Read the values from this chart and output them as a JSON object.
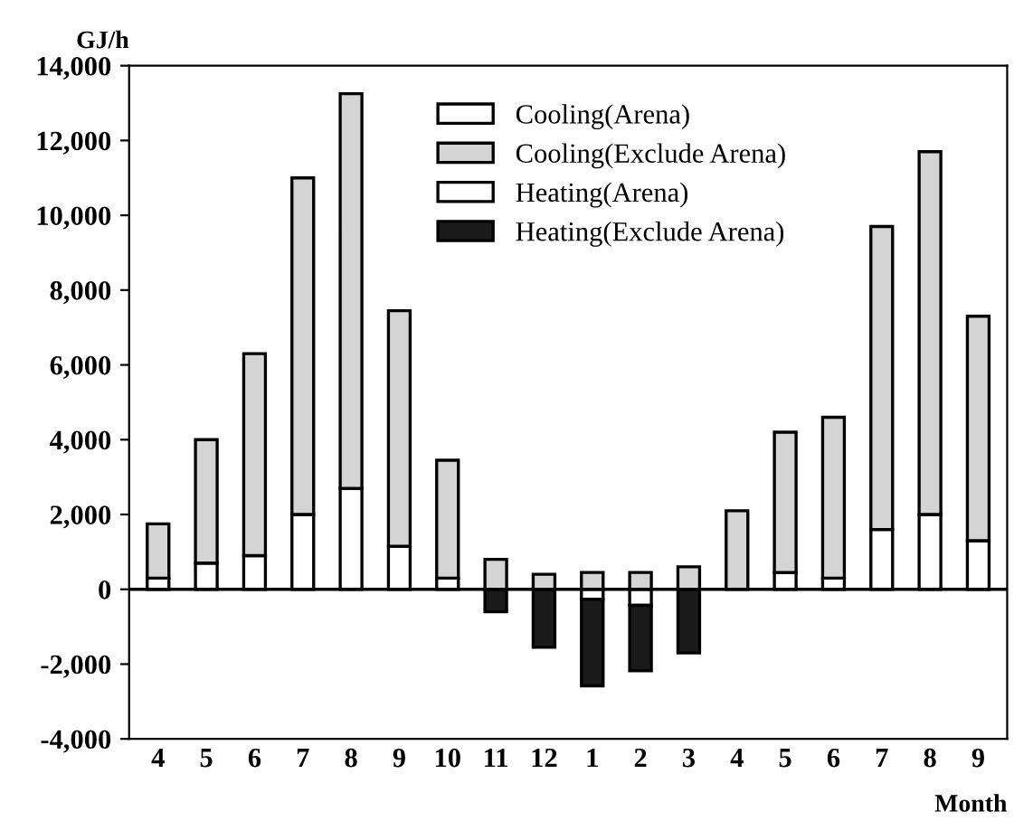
{
  "chart_data": {
    "type": "bar",
    "stacked": true,
    "ylabel": "GJ/h",
    "xlabel": "Month",
    "categories": [
      "4",
      "5",
      "6",
      "7",
      "8",
      "9",
      "10",
      "11",
      "12",
      "1",
      "2",
      "3",
      "4",
      "5",
      "6",
      "7",
      "8",
      "9"
    ],
    "series": [
      {
        "name": "Cooling(Arena)",
        "color": "#ffffff",
        "values": [
          300,
          700,
          900,
          2000,
          2700,
          1150,
          300,
          null,
          null,
          null,
          null,
          null,
          null,
          450,
          300,
          1600,
          2000,
          1300
        ]
      },
      {
        "name": "Cooling(Exclude Arena)",
        "color": "#d4d4d4",
        "values": [
          1450,
          3300,
          5400,
          9000,
          10550,
          6300,
          3150,
          800,
          400,
          450,
          450,
          600,
          2100,
          3750,
          4300,
          8100,
          9700,
          6000
        ]
      },
      {
        "name": "Heating(Arena)",
        "color": "#ffffff",
        "values": [
          null,
          null,
          null,
          null,
          null,
          null,
          null,
          null,
          null,
          -270,
          -430,
          null,
          null,
          null,
          null,
          null,
          null,
          null
        ]
      },
      {
        "name": "Heating(Exclude Arena)",
        "color": "#1a1a1a",
        "values": [
          null,
          null,
          null,
          null,
          null,
          null,
          null,
          -600,
          -1550,
          -2310,
          -1750,
          -1700,
          null,
          null,
          null,
          null,
          null,
          null
        ]
      }
    ],
    "ylim": [
      -4000,
      14000
    ],
    "yticks": [
      {
        "value": -4000,
        "label": "-4,000"
      },
      {
        "value": -2000,
        "label": "-2,000"
      },
      0,
      {
        "value": 2000,
        "label": "2,000"
      },
      {
        "value": 4000,
        "label": "4,000"
      },
      {
        "value": 6000,
        "label": "6,000"
      },
      {
        "value": 8000,
        "label": "8,000"
      },
      {
        "value": 10000,
        "label": "10,000"
      },
      {
        "value": 12000,
        "label": "12,000"
      },
      {
        "value": 14000,
        "label": "14,000"
      }
    ],
    "ref_lines": [
      {
        "axis": "y",
        "value": 0
      }
    ],
    "grid": false,
    "legend": "top"
  }
}
